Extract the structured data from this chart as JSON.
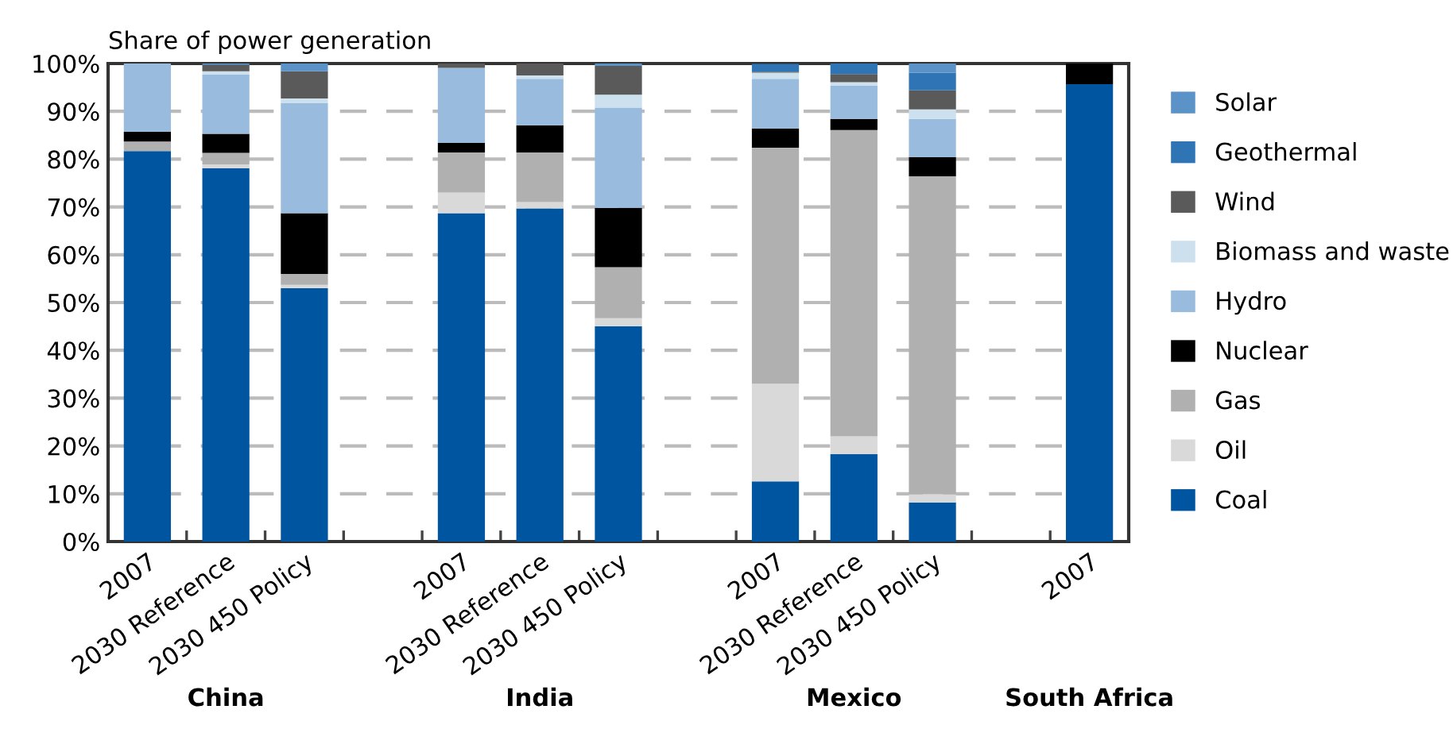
{
  "chart_data": {
    "type": "bar",
    "stacked": true,
    "ylabel": "Share of power generation",
    "categories": [
      "2007",
      "2030 Reference",
      "2030 450 Policy",
      null,
      "2007",
      "2030 Reference",
      "2030 450 Policy",
      null,
      "2007",
      "2030 Reference",
      "2030 450 Policy",
      null,
      "2007"
    ],
    "annotations": [
      "China",
      "India",
      "Mexico",
      "South Africa"
    ],
    "series": [
      {
        "name": "Coal",
        "color": "#0055a0",
        "values": [
          81.7,
          78.1,
          53.0,
          null,
          68.7,
          69.7,
          45.0,
          null,
          12.6,
          18.3,
          8.2,
          null,
          95.7
        ]
      },
      {
        "name": "Oil",
        "color": "#d9d9d9",
        "values": [
          null,
          0.8,
          0.7,
          null,
          4.3,
          1.3,
          1.7,
          null,
          20.4,
          3.7,
          1.7,
          null,
          0
        ]
      },
      {
        "name": "Gas",
        "color": "#b0b0b0",
        "values": [
          2.0,
          2.4,
          2.3,
          null,
          8.4,
          10.4,
          10.7,
          null,
          49.4,
          64.1,
          66.5,
          null,
          0
        ]
      },
      {
        "name": "Nuclear",
        "color": "#000000",
        "values": [
          2.0,
          4.0,
          12.7,
          null,
          2.0,
          5.7,
          12.4,
          null,
          4.0,
          2.3,
          4.0,
          null,
          4.3
        ]
      },
      {
        "name": "Hydro",
        "color": "#99bbdd",
        "values": [
          14.3,
          12.4,
          23.0,
          null,
          15.7,
          9.7,
          21.0,
          null,
          10.4,
          7.0,
          8.0,
          null,
          0
        ]
      },
      {
        "name": "Biomass and waste",
        "color": "#cce0ee",
        "values": [
          0,
          0.7,
          1.0,
          null,
          null,
          0.7,
          2.7,
          null,
          1.3,
          0.7,
          2.0,
          null,
          0
        ]
      },
      {
        "name": "Wind",
        "color": "#5a5a5a",
        "values": [
          0,
          1.3,
          5.7,
          null,
          0.9,
          2.7,
          6.0,
          null,
          0.2,
          1.7,
          4.0,
          null,
          0
        ]
      },
      {
        "name": "Geothermal",
        "color": "#2f75b5",
        "values": [
          0,
          0,
          0,
          null,
          0,
          0,
          0,
          null,
          1.6,
          2.2,
          3.7,
          null,
          0
        ]
      },
      {
        "name": "Solar",
        "color": "#5b93c8",
        "values": [
          0,
          0.3,
          1.6,
          null,
          0,
          null,
          0.6,
          null,
          0,
          0,
          1.9,
          null,
          0
        ]
      }
    ],
    "ylim": [
      0,
      100
    ],
    "yticks": [
      {
        "value": 0,
        "label": "0%"
      },
      {
        "value": 10,
        "label": "10%"
      },
      {
        "value": 20,
        "label": "20%"
      },
      {
        "value": 30,
        "label": "30%"
      },
      {
        "value": 40,
        "label": "40%"
      },
      {
        "value": 50,
        "label": "50%"
      },
      {
        "value": 60,
        "label": "60%"
      },
      {
        "value": 70,
        "label": "70%"
      },
      {
        "value": 80,
        "label": "80%"
      },
      {
        "value": 90,
        "label": "90%"
      },
      {
        "value": 100,
        "label": "100%"
      }
    ],
    "grid": "y",
    "legend": "right"
  }
}
